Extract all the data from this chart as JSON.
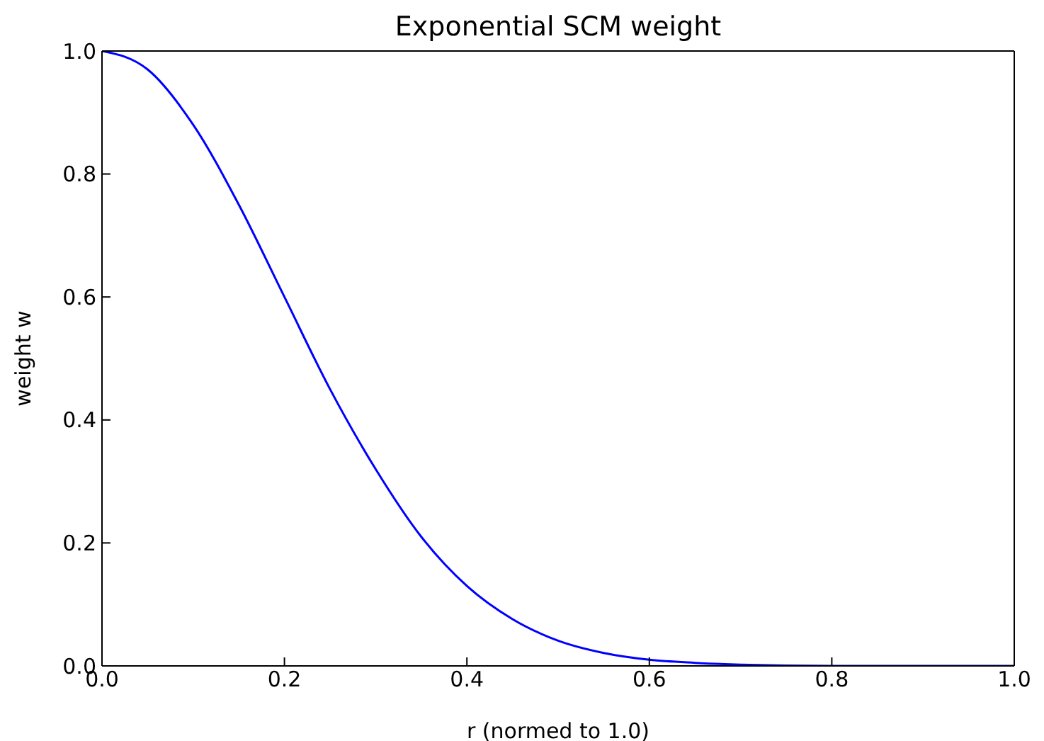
{
  "chart_data": {
    "type": "line",
    "title": "Exponential SCM weight",
    "xlabel": "r (normed to 1.0)",
    "ylabel": "weight w",
    "x": [
      0,
      0.05,
      0.1,
      0.15,
      0.2,
      0.25,
      0.3,
      0.35,
      0.4,
      0.45,
      0.5,
      0.55,
      0.6,
      0.65,
      0.7,
      0.8,
      0.9,
      1.0
    ],
    "series": [
      {
        "color": "#0000ff",
        "values": [
          1,
          0.97,
          0.88,
          0.75,
          0.6,
          0.45,
          0.32,
          0.21,
          0.13,
          0.076,
          0.041,
          0.021,
          0.01,
          0.005,
          0.002,
          0,
          0,
          0
        ]
      }
    ],
    "xlim": [
      0,
      1
    ],
    "ylim": [
      0,
      1
    ],
    "xticks": [
      {
        "value": 0,
        "label": "0.0"
      },
      0.2,
      0.4,
      0.6,
      0.8,
      {
        "value": 1,
        "label": "1.0"
      }
    ],
    "yticks": [
      {
        "value": 0,
        "label": "0.0"
      },
      0.2,
      0.4,
      0.6,
      0.8,
      {
        "value": 1,
        "label": "1.0"
      }
    ],
    "grid": false,
    "legend": false,
    "marker": "none",
    "line_style": "solid"
  }
}
